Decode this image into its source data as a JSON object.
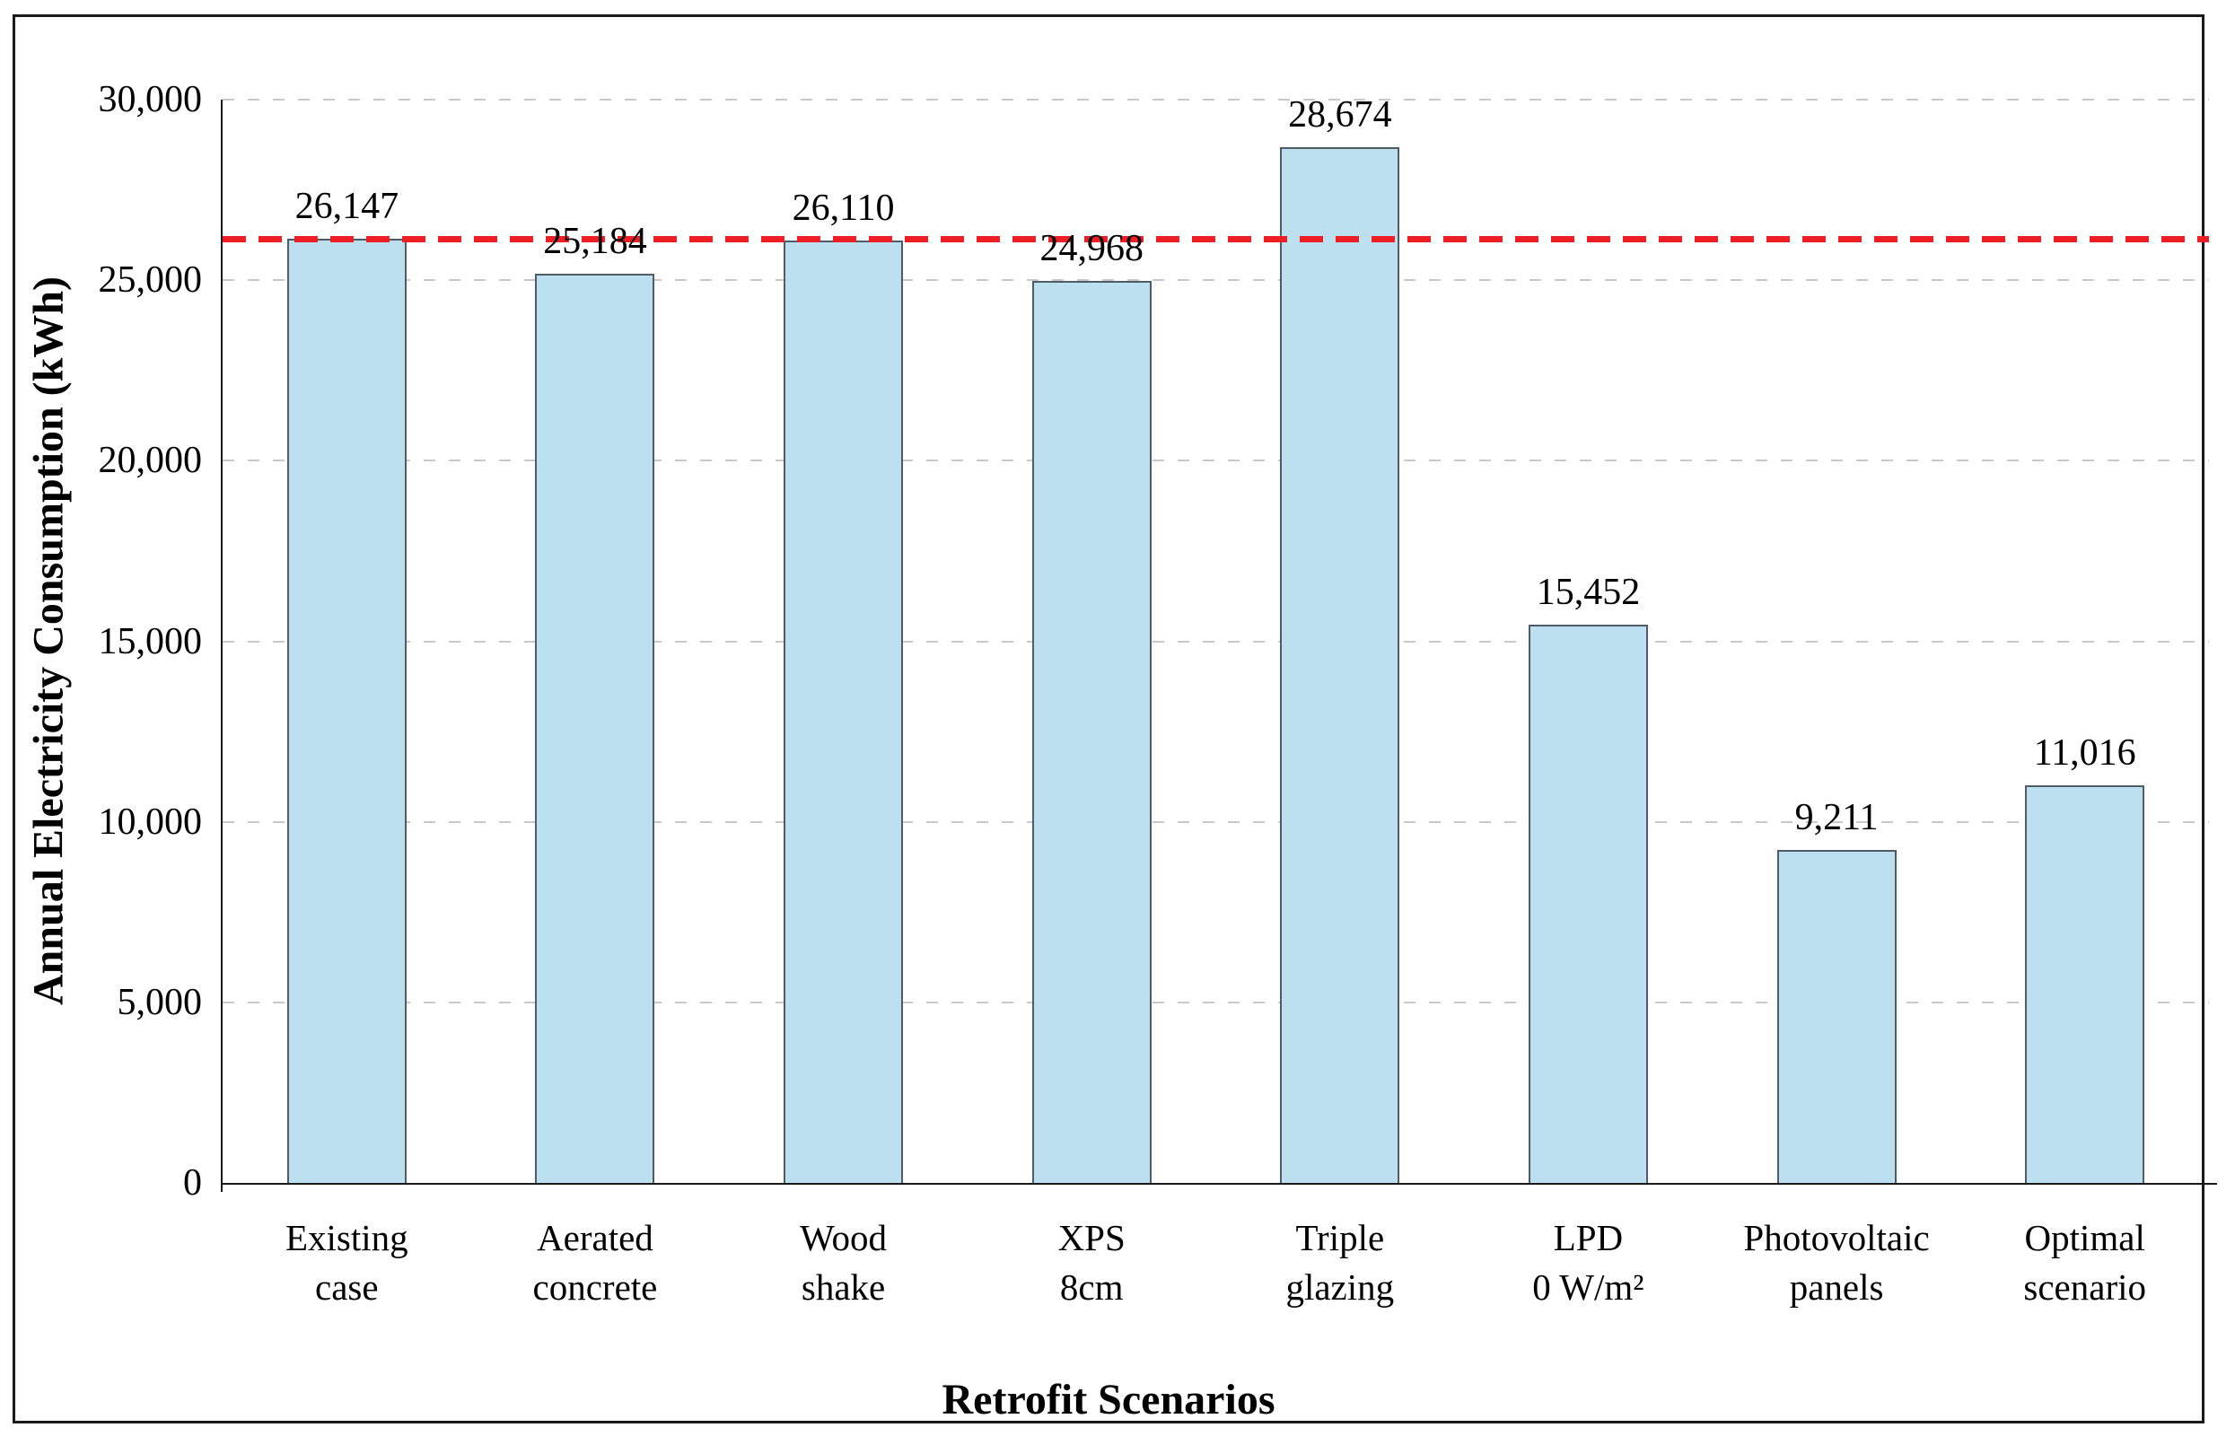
{
  "chart_data": {
    "type": "bar",
    "title": "",
    "xlabel": "Retrofit Scenarios",
    "ylabel": "Annual Electricity Consumption (kWh)",
    "categories": [
      [
        "Existing",
        "case"
      ],
      [
        "Aerated",
        "concrete"
      ],
      [
        "Wood",
        "shake"
      ],
      [
        "XPS",
        "8cm"
      ],
      [
        "Triple",
        "glazing"
      ],
      [
        "LPD",
        "0 W/m²"
      ],
      [
        "Photovoltaic",
        "panels"
      ],
      [
        "Optimal",
        "scenario"
      ]
    ],
    "values": [
      26147,
      25184,
      26110,
      24968,
      28674,
      15452,
      9211,
      11016
    ],
    "value_labels": [
      "26,147",
      "25,184",
      "26,110",
      "24,968",
      "28,674",
      "15,452",
      "9,211",
      "11,016"
    ],
    "y_axis": {
      "min": 0,
      "max": 30000,
      "tick_step": 5000,
      "tick_values": [
        0,
        5000,
        10000,
        15000,
        20000,
        25000,
        30000
      ],
      "tick_labels": [
        "0",
        "5,000",
        "10,000",
        "15,000",
        "20,000",
        "25,000",
        "30,000"
      ]
    },
    "reference_line": {
      "value": 26147,
      "style": "dashed",
      "color": "#ED1F24"
    },
    "grid": "horizontal-dashed",
    "legend": null,
    "colors": {
      "bar_fill": "#BCE0F0",
      "bar_border": "#4F5B66",
      "gridline": "#C9C9C9",
      "axis": "#1A1A1A",
      "reference": "#ED1F24"
    }
  }
}
